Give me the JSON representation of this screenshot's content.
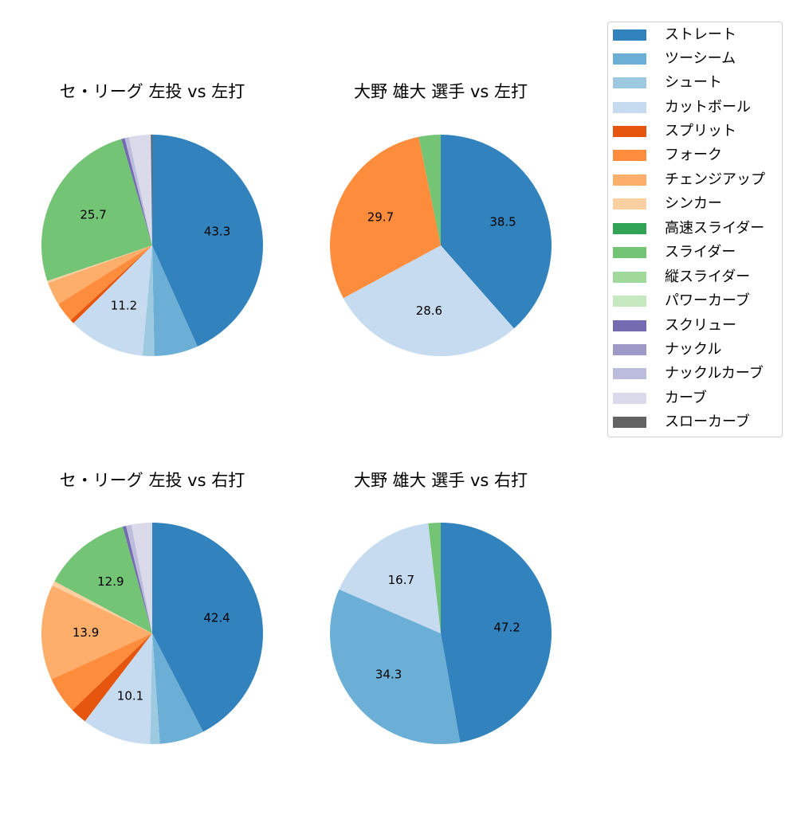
{
  "legend": {
    "items": [
      {
        "label": "ストレート",
        "color": "#3182bd"
      },
      {
        "label": "ツーシーム",
        "color": "#6baed6"
      },
      {
        "label": "シュート",
        "color": "#9ecae1"
      },
      {
        "label": "カットボール",
        "color": "#c6dbef"
      },
      {
        "label": "スプリット",
        "color": "#e6550d"
      },
      {
        "label": "フォーク",
        "color": "#fd8d3c"
      },
      {
        "label": "チェンジアップ",
        "color": "#fdae6b"
      },
      {
        "label": "シンカー",
        "color": "#fdd0a2"
      },
      {
        "label": "高速スライダー",
        "color": "#31a354"
      },
      {
        "label": "スライダー",
        "color": "#74c476"
      },
      {
        "label": "縦スライダー",
        "color": "#a1d99b"
      },
      {
        "label": "パワーカーブ",
        "color": "#c7e9c0"
      },
      {
        "label": "スクリュー",
        "color": "#756bb1"
      },
      {
        "label": "ナックル",
        "color": "#9e9ac8"
      },
      {
        "label": "ナックルカーブ",
        "color": "#bcbddc"
      },
      {
        "label": "カーブ",
        "color": "#dadaeb"
      },
      {
        "label": "スローカーブ",
        "color": "#636363"
      }
    ]
  },
  "panels": [
    {
      "title": "セ・リーグ 左投 vs 左打"
    },
    {
      "title": "大野 雄大 選手 vs 左打"
    },
    {
      "title": "セ・リーグ 左投 vs 右打"
    },
    {
      "title": "大野 雄大 選手 vs 右打"
    }
  ],
  "chart_data": [
    {
      "type": "pie",
      "title": "セ・リーグ 左投 vs 左打",
      "start_angle_deg": 90,
      "direction": "clockwise",
      "label_threshold_pct": 10,
      "categories": [
        "ストレート",
        "ツーシーム",
        "シュート",
        "カットボール",
        "スプリット",
        "フォーク",
        "チェンジアップ",
        "シンカー",
        "スライダー",
        "スクリュー",
        "ナックルカーブ",
        "カーブ",
        "スローカーブ"
      ],
      "values": [
        43.3,
        6.4,
        1.7,
        11.2,
        0.6,
        2.9,
        3.4,
        0.3,
        25.7,
        0.5,
        0.6,
        3.2,
        0.2
      ],
      "labels_shown": [
        "43.3",
        "11.2",
        "25.7"
      ]
    },
    {
      "type": "pie",
      "title": "大野 雄大 選手 vs 左打",
      "start_angle_deg": 90,
      "direction": "clockwise",
      "label_threshold_pct": 10,
      "categories": [
        "ストレート",
        "カットボール",
        "フォーク",
        "スライダー"
      ],
      "values": [
        38.5,
        28.6,
        29.7,
        3.2
      ],
      "labels_shown": [
        "38.5",
        "28.6",
        "29.7"
      ]
    },
    {
      "type": "pie",
      "title": "セ・リーグ 左投 vs 右打",
      "start_angle_deg": 90,
      "direction": "clockwise",
      "label_threshold_pct": 10,
      "categories": [
        "ストレート",
        "ツーシーム",
        "シュート",
        "カットボール",
        "スプリット",
        "フォーク",
        "チェンジアップ",
        "シンカー",
        "スライダー",
        "スクリュー",
        "ナックルカーブ",
        "カーブ"
      ],
      "values": [
        42.4,
        6.5,
        1.4,
        10.1,
        2.4,
        5.4,
        13.9,
        0.7,
        12.9,
        0.5,
        0.8,
        3.0
      ],
      "labels_shown": [
        "42.4",
        "10.1",
        "13.9",
        "12.9"
      ]
    },
    {
      "type": "pie",
      "title": "大野 雄大 選手 vs 右打",
      "start_angle_deg": 90,
      "direction": "clockwise",
      "label_threshold_pct": 10,
      "categories": [
        "ストレート",
        "ツーシーム",
        "カットボール",
        "スライダー"
      ],
      "values": [
        47.2,
        34.3,
        16.7,
        1.8
      ],
      "labels_shown": [
        "47.2",
        "34.3",
        "16.7"
      ]
    }
  ]
}
